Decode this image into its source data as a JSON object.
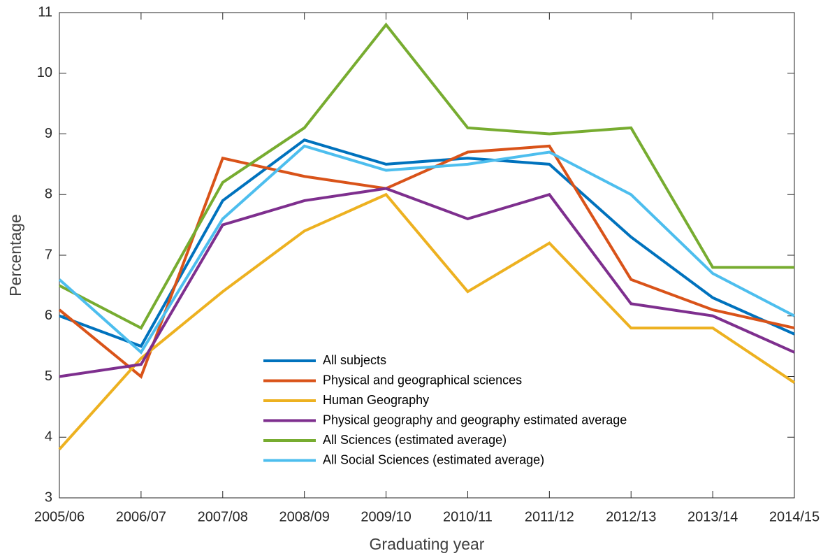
{
  "chart_data": {
    "type": "line",
    "x_label": "Graduating year",
    "y_label": "Percentage",
    "categories": [
      "2005/06",
      "2006/07",
      "2007/08",
      "2008/09",
      "2009/10",
      "2010/11",
      "2011/12",
      "2012/13",
      "2013/14",
      "2014/15"
    ],
    "series": [
      {
        "name": "All subjects",
        "color": "#0072bd",
        "values": [
          6.0,
          5.5,
          7.9,
          8.9,
          8.5,
          8.6,
          8.5,
          7.3,
          6.3,
          5.7
        ]
      },
      {
        "name": "Physical and geographical sciences",
        "color": "#d95319",
        "values": [
          6.1,
          5.0,
          8.6,
          8.3,
          8.1,
          8.7,
          8.8,
          6.6,
          6.1,
          5.8
        ]
      },
      {
        "name": "Human Geography",
        "color": "#edb120",
        "values": [
          3.8,
          5.3,
          6.4,
          7.4,
          8.0,
          6.4,
          7.2,
          5.8,
          5.8,
          4.9
        ]
      },
      {
        "name": "Physical geography and geography estimated average",
        "color": "#7e2f8e",
        "values": [
          5.0,
          5.2,
          7.5,
          7.9,
          8.1,
          7.6,
          8.0,
          6.2,
          6.0,
          5.4
        ]
      },
      {
        "name": "All Sciences (estimated average)",
        "color": "#77ac30",
        "values": [
          6.5,
          5.8,
          8.2,
          9.1,
          10.8,
          9.1,
          9.0,
          9.1,
          6.8,
          6.8
        ]
      },
      {
        "name": "All Social Sciences (estimated average)",
        "color": "#4dbeee",
        "values": [
          6.6,
          5.4,
          7.6,
          8.8,
          8.4,
          8.5,
          8.7,
          8.0,
          6.7,
          6.0
        ]
      }
    ],
    "ylim": [
      3,
      11
    ],
    "yticks": [
      3,
      4,
      5,
      6,
      7,
      8,
      9,
      10,
      11
    ],
    "grid": false,
    "legend": "lower center"
  }
}
